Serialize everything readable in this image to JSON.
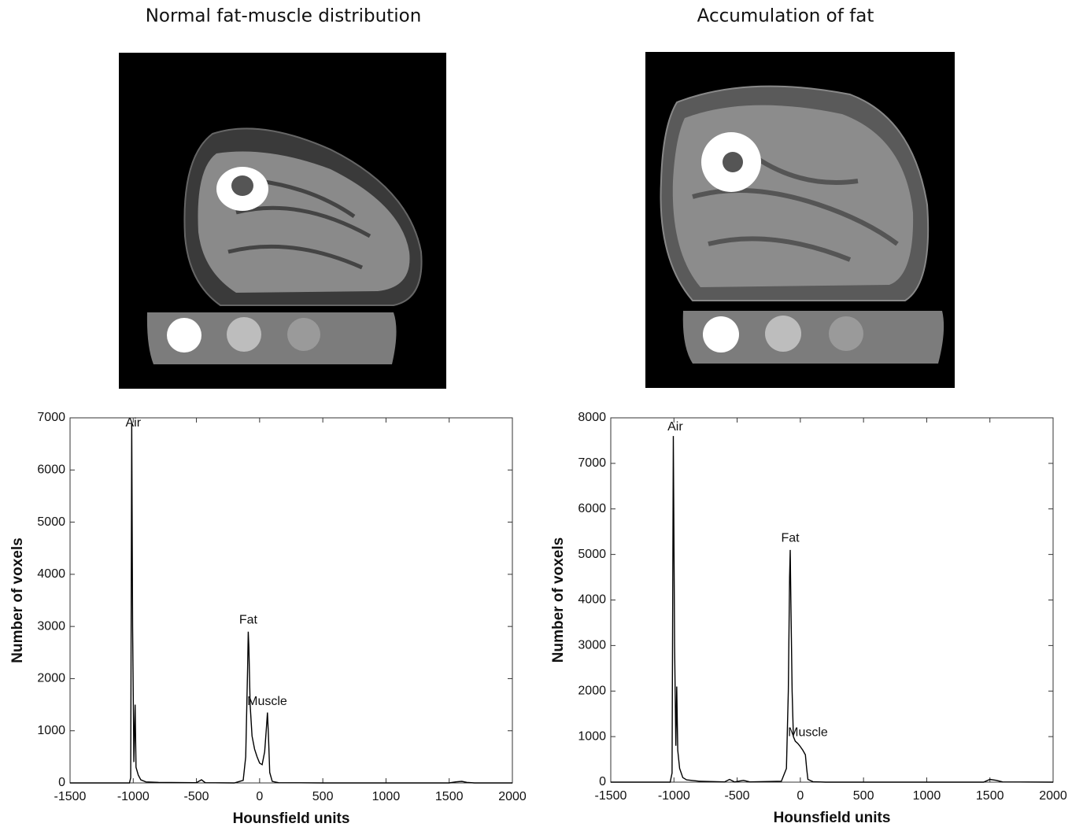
{
  "chart_data": [
    {
      "type": "line",
      "title": "Normal fat-muscle distribution",
      "x_label": "Hounsfield units",
      "y_label": "Number of voxels",
      "xlim": [
        -1500,
        2000
      ],
      "ylim": [
        0,
        7000
      ],
      "xticks": [
        -1500,
        -1000,
        -500,
        0,
        500,
        1000,
        1500,
        2000
      ],
      "yticks": [
        0,
        1000,
        2000,
        3000,
        4000,
        5000,
        6000,
        7000
      ],
      "color": "#000000",
      "x": [
        -1500,
        -1030,
        -1020,
        -1012,
        -1005,
        -995,
        -985,
        -978,
        -960,
        -940,
        -900,
        -800,
        -500,
        -460,
        -430,
        -200,
        -130,
        -110,
        -95,
        -90,
        -85,
        -75,
        -60,
        -40,
        -20,
        0,
        20,
        40,
        55,
        62,
        70,
        80,
        100,
        150,
        500,
        1500,
        1550,
        1600,
        1640,
        1700,
        2000
      ],
      "values": [
        0,
        0,
        100,
        6900,
        3000,
        400,
        1500,
        300,
        150,
        60,
        20,
        10,
        5,
        60,
        5,
        0,
        50,
        500,
        2200,
        2900,
        2600,
        1500,
        900,
        650,
        500,
        380,
        350,
        600,
        1100,
        1350,
        900,
        200,
        30,
        5,
        0,
        0,
        20,
        30,
        10,
        0,
        0
      ],
      "annotations": [
        {
          "text": "Air",
          "x": -1000,
          "y": 6900
        },
        {
          "text": "Fat",
          "x": -90,
          "y": 3120
        },
        {
          "text": "Muscle",
          "x": 60,
          "y": 1560
        }
      ]
    },
    {
      "type": "line",
      "title": "Accumulation of fat",
      "x_label": "Hounsfield units",
      "y_label": "Number of voxels",
      "xlim": [
        -1500,
        2000
      ],
      "ylim": [
        0,
        8000
      ],
      "xticks": [
        -1500,
        -1000,
        -500,
        0,
        500,
        1000,
        1500,
        2000
      ],
      "yticks": [
        0,
        1000,
        2000,
        3000,
        4000,
        5000,
        6000,
        7000,
        8000
      ],
      "color": "#000000",
      "x": [
        -1500,
        -1030,
        -1015,
        -1005,
        -995,
        -985,
        -978,
        -970,
        -955,
        -930,
        -900,
        -800,
        -600,
        -560,
        -520,
        -450,
        -400,
        -150,
        -110,
        -95,
        -85,
        -80,
        -75,
        -65,
        -55,
        -40,
        -20,
        0,
        20,
        40,
        50,
        60,
        100,
        200,
        1450,
        1500,
        1550,
        1600,
        2000
      ],
      "values": [
        0,
        0,
        200,
        7600,
        3000,
        800,
        2100,
        700,
        300,
        100,
        50,
        20,
        5,
        60,
        5,
        40,
        5,
        20,
        300,
        2000,
        4500,
        5100,
        4000,
        2000,
        1000,
        900,
        850,
        780,
        700,
        600,
        300,
        60,
        10,
        0,
        0,
        60,
        40,
        5,
        0
      ],
      "annotations": [
        {
          "text": "Air",
          "x": -990,
          "y": 7800
        },
        {
          "text": "Fat",
          "x": -80,
          "y": 5350
        },
        {
          "text": "Muscle",
          "x": 60,
          "y": 1080
        }
      ]
    }
  ]
}
